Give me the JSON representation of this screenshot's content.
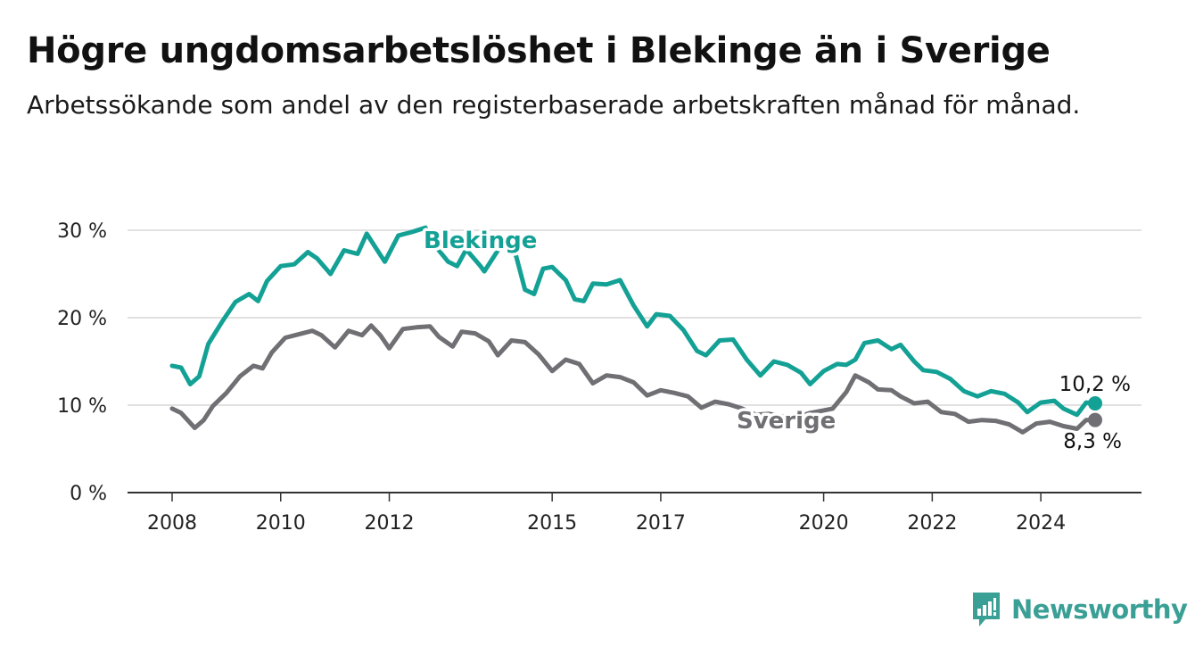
{
  "header": {
    "title": "Högre ungdomsarbetslöshet i Blekinge än i Sverige",
    "subtitle": "Arbetssökande som andel av den registerbaserade arbetskraften månad för månad."
  },
  "brand": {
    "name": "Newsworthy",
    "color": "#3a9f95",
    "icon": "newsworthy-logo-icon"
  },
  "chart_data": {
    "type": "line",
    "title": "Högre ungdomsarbetslöshet i Blekinge än i Sverige",
    "xlabel": "",
    "ylabel": "",
    "xlim": [
      "2008-01",
      "2025-01"
    ],
    "ylim": [
      0,
      30
    ],
    "y_ticks": [
      0,
      10,
      20,
      30
    ],
    "y_tick_labels": [
      "0 %",
      "10 %",
      "20 %",
      "30 %"
    ],
    "x_ticks": [
      "2008-01",
      "2010-01",
      "2012-01",
      "2015-01",
      "2017-01",
      "2020-01",
      "2022-01",
      "2024-01"
    ],
    "x_tick_labels": [
      "2008",
      "2010",
      "2012",
      "2015",
      "2017",
      "2020",
      "2022",
      "2024"
    ],
    "grid": "horizontal",
    "series": [
      {
        "name": "Blekinge",
        "color": "#14a195",
        "end_label": "10,2 %",
        "points": [
          [
            "2008-01",
            14.5
          ],
          [
            "2008-03",
            14.3
          ],
          [
            "2008-05",
            12.4
          ],
          [
            "2008-07",
            13.3
          ],
          [
            "2008-09",
            17.0
          ],
          [
            "2008-12",
            19.5
          ],
          [
            "2009-03",
            21.8
          ],
          [
            "2009-06",
            22.7
          ],
          [
            "2009-08",
            21.9
          ],
          [
            "2009-10",
            24.2
          ],
          [
            "2010-01",
            25.9
          ],
          [
            "2010-04",
            26.1
          ],
          [
            "2010-07",
            27.5
          ],
          [
            "2010-09",
            26.8
          ],
          [
            "2010-12",
            25.0
          ],
          [
            "2011-03",
            27.7
          ],
          [
            "2011-06",
            27.3
          ],
          [
            "2011-08",
            29.6
          ],
          [
            "2011-10",
            28.0
          ],
          [
            "2011-12",
            26.4
          ],
          [
            "2012-03",
            29.4
          ],
          [
            "2012-06",
            29.8
          ],
          [
            "2012-09",
            30.3
          ],
          [
            "2012-11",
            28.3
          ],
          [
            "2013-02",
            26.4
          ],
          [
            "2013-04",
            25.9
          ],
          [
            "2013-06",
            27.8
          ],
          [
            "2013-09",
            26.0
          ],
          [
            "2013-10",
            25.3
          ],
          [
            "2014-02",
            28.5
          ],
          [
            "2014-05",
            27.1
          ],
          [
            "2014-07",
            23.2
          ],
          [
            "2014-09",
            22.7
          ],
          [
            "2014-11",
            25.6
          ],
          [
            "2015-01",
            25.8
          ],
          [
            "2015-04",
            24.3
          ],
          [
            "2015-06",
            22.1
          ],
          [
            "2015-08",
            21.9
          ],
          [
            "2015-10",
            23.9
          ],
          [
            "2016-01",
            23.8
          ],
          [
            "2016-04",
            24.3
          ],
          [
            "2016-07",
            21.4
          ],
          [
            "2016-10",
            19.0
          ],
          [
            "2016-12",
            20.4
          ],
          [
            "2017-03",
            20.2
          ],
          [
            "2017-06",
            18.6
          ],
          [
            "2017-09",
            16.2
          ],
          [
            "2017-11",
            15.7
          ],
          [
            "2018-02",
            17.4
          ],
          [
            "2018-05",
            17.5
          ],
          [
            "2018-08",
            15.2
          ],
          [
            "2018-11",
            13.4
          ],
          [
            "2019-02",
            15.0
          ],
          [
            "2019-05",
            14.6
          ],
          [
            "2019-08",
            13.7
          ],
          [
            "2019-10",
            12.4
          ],
          [
            "2020-01",
            13.9
          ],
          [
            "2020-04",
            14.7
          ],
          [
            "2020-06",
            14.6
          ],
          [
            "2020-08",
            15.2
          ],
          [
            "2020-10",
            17.1
          ],
          [
            "2021-01",
            17.4
          ],
          [
            "2021-04",
            16.4
          ],
          [
            "2021-06",
            16.9
          ],
          [
            "2021-09",
            15.0
          ],
          [
            "2021-11",
            14.0
          ],
          [
            "2022-02",
            13.8
          ],
          [
            "2022-05",
            13.0
          ],
          [
            "2022-08",
            11.6
          ],
          [
            "2022-11",
            11.0
          ],
          [
            "2023-02",
            11.6
          ],
          [
            "2023-05",
            11.3
          ],
          [
            "2023-08",
            10.3
          ],
          [
            "2023-10",
            9.2
          ],
          [
            "2024-01",
            10.3
          ],
          [
            "2024-04",
            10.5
          ],
          [
            "2024-06",
            9.6
          ],
          [
            "2024-09",
            8.9
          ],
          [
            "2024-11",
            10.3
          ],
          [
            "2025-01",
            10.2
          ]
        ]
      },
      {
        "name": "Sverige",
        "color": "#6f6f74",
        "end_label": "8,3 %",
        "points": [
          [
            "2008-01",
            9.6
          ],
          [
            "2008-03",
            9.1
          ],
          [
            "2008-06",
            7.4
          ],
          [
            "2008-08",
            8.3
          ],
          [
            "2008-10",
            9.9
          ],
          [
            "2009-01",
            11.4
          ],
          [
            "2009-04",
            13.3
          ],
          [
            "2009-07",
            14.5
          ],
          [
            "2009-09",
            14.2
          ],
          [
            "2009-11",
            16.0
          ],
          [
            "2010-02",
            17.7
          ],
          [
            "2010-05",
            18.1
          ],
          [
            "2010-08",
            18.5
          ],
          [
            "2010-10",
            18.0
          ],
          [
            "2011-01",
            16.6
          ],
          [
            "2011-04",
            18.5
          ],
          [
            "2011-07",
            18.0
          ],
          [
            "2011-09",
            19.1
          ],
          [
            "2011-11",
            18.0
          ],
          [
            "2012-01",
            16.5
          ],
          [
            "2012-04",
            18.7
          ],
          [
            "2012-07",
            18.9
          ],
          [
            "2012-10",
            19.0
          ],
          [
            "2012-12",
            17.8
          ],
          [
            "2013-03",
            16.7
          ],
          [
            "2013-05",
            18.4
          ],
          [
            "2013-08",
            18.2
          ],
          [
            "2013-11",
            17.3
          ],
          [
            "2014-01",
            15.7
          ],
          [
            "2014-04",
            17.4
          ],
          [
            "2014-07",
            17.2
          ],
          [
            "2014-10",
            15.8
          ],
          [
            "2015-01",
            13.9
          ],
          [
            "2015-04",
            15.2
          ],
          [
            "2015-07",
            14.7
          ],
          [
            "2015-10",
            12.5
          ],
          [
            "2016-01",
            13.4
          ],
          [
            "2016-04",
            13.2
          ],
          [
            "2016-07",
            12.6
          ],
          [
            "2016-10",
            11.1
          ],
          [
            "2017-01",
            11.7
          ],
          [
            "2017-04",
            11.4
          ],
          [
            "2017-07",
            11.0
          ],
          [
            "2017-10",
            9.7
          ],
          [
            "2018-01",
            10.4
          ],
          [
            "2018-04",
            10.1
          ],
          [
            "2018-07",
            9.6
          ],
          [
            "2018-10",
            8.9
          ],
          [
            "2019-01",
            9.0
          ],
          [
            "2019-04",
            8.7
          ],
          [
            "2019-07",
            8.6
          ],
          [
            "2019-10",
            9.1
          ],
          [
            "2020-01",
            9.4
          ],
          [
            "2020-03",
            9.6
          ],
          [
            "2020-06",
            11.5
          ],
          [
            "2020-08",
            13.4
          ],
          [
            "2020-11",
            12.6
          ],
          [
            "2021-01",
            11.8
          ],
          [
            "2021-04",
            11.7
          ],
          [
            "2021-06",
            11.0
          ],
          [
            "2021-09",
            10.2
          ],
          [
            "2021-12",
            10.4
          ],
          [
            "2022-03",
            9.2
          ],
          [
            "2022-06",
            9.0
          ],
          [
            "2022-09",
            8.1
          ],
          [
            "2022-12",
            8.3
          ],
          [
            "2023-03",
            8.2
          ],
          [
            "2023-06",
            7.8
          ],
          [
            "2023-09",
            6.9
          ],
          [
            "2023-12",
            7.9
          ],
          [
            "2024-03",
            8.1
          ],
          [
            "2024-06",
            7.6
          ],
          [
            "2024-09",
            7.3
          ],
          [
            "2024-11",
            8.3
          ],
          [
            "2025-01",
            8.3
          ]
        ]
      }
    ]
  }
}
